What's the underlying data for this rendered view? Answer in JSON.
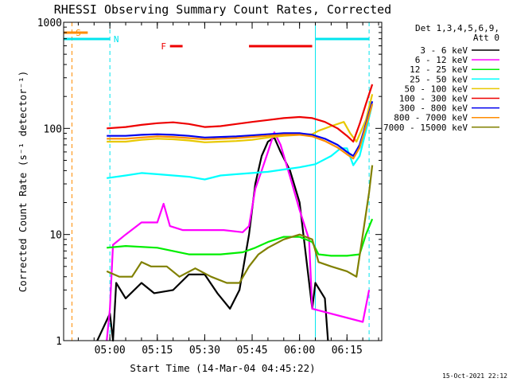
{
  "chart_data": {
    "type": "line",
    "title": "RHESSI Observing Summary Count Rates, Corrected",
    "xlabel": "Start Time (14-Mar-04 04:45:22)",
    "ylabel": "Corrected Count Rate (s⁻¹ detector⁻¹)",
    "y_scale": "log",
    "ylim": [
      1,
      1000
    ],
    "y_ticks": [
      {
        "value": 1,
        "label": "1"
      },
      {
        "value": 10,
        "label": "10"
      },
      {
        "value": 100,
        "label": "100"
      },
      {
        "value": 1000,
        "label": "1000"
      }
    ],
    "xlim": [
      "04:45:22",
      "06:26:00"
    ],
    "x_ticks": [
      "05:00",
      "05:15",
      "05:30",
      "05:45",
      "06:00",
      "06:15"
    ],
    "legend_position": "right",
    "legend_header": [
      "Det 1,3,4,5,6,9,",
      "Att 0"
    ],
    "footer_timestamp": "15-Oct-2021 22:12",
    "flags": [
      {
        "label": "S",
        "color": "#ff8c00",
        "time": "04:48",
        "bar": [
          "04:45:22",
          "04:53"
        ],
        "line_style": "dashed"
      },
      {
        "label": "N",
        "color": "#00e5ee",
        "time": "05:00",
        "bar": [
          "04:45:22",
          "05:00"
        ],
        "line_style": "dashed"
      },
      {
        "label": "F",
        "color": "#ee0000",
        "bars": [
          [
            "05:19",
            "05:23"
          ],
          [
            "05:44",
            "06:04"
          ]
        ]
      },
      {
        "label": "",
        "color": "#00e5ee",
        "times": [
          "06:05",
          "06:22"
        ],
        "bar": [
          "06:05",
          "06:22"
        ]
      }
    ],
    "series": [
      {
        "name": "3 - 6 keV",
        "color": "#000000",
        "points": [
          [
            "04:56",
            1.0
          ],
          [
            "05:00",
            1.8
          ],
          [
            "05:01",
            1.0
          ],
          [
            "05:02",
            3.5
          ],
          [
            "05:05",
            2.5
          ],
          [
            "05:10",
            3.5
          ],
          [
            "05:14",
            2.8
          ],
          [
            "05:20",
            3.0
          ],
          [
            "05:25",
            4.2
          ],
          [
            "05:30",
            4.2
          ],
          [
            "05:34",
            2.8
          ],
          [
            "05:38",
            2.0
          ],
          [
            "05:41",
            3.0
          ],
          [
            "05:44",
            10.0
          ],
          [
            "05:46",
            30.0
          ],
          [
            "05:48",
            55.0
          ],
          [
            "05:50",
            75.0
          ],
          [
            "05:52",
            82.0
          ],
          [
            "05:54",
            60.0
          ],
          [
            "05:57",
            40.0
          ],
          [
            "06:00",
            20.0
          ],
          [
            "06:04",
            2.0
          ],
          [
            "06:05",
            3.5
          ],
          [
            "06:08",
            2.5
          ],
          [
            "06:09",
            1.0
          ]
        ]
      },
      {
        "name": "6 - 12 keV",
        "color": "#ff00ff",
        "points": [
          [
            "04:59",
            1.0
          ],
          [
            "05:00",
            2.0
          ],
          [
            "05:01",
            8.0
          ],
          [
            "05:05",
            10.0
          ],
          [
            "05:10",
            13.0
          ],
          [
            "05:15",
            13.0
          ],
          [
            "05:17",
            19.5
          ],
          [
            "05:19",
            12.0
          ],
          [
            "05:23",
            11.0
          ],
          [
            "05:30",
            11.0
          ],
          [
            "05:36",
            11.0
          ],
          [
            "05:42",
            10.5
          ],
          [
            "05:44",
            12.0
          ],
          [
            "05:46",
            27.0
          ],
          [
            "05:48",
            40.0
          ],
          [
            "05:50",
            60.0
          ],
          [
            "05:52",
            92.0
          ],
          [
            "05:54",
            70.0
          ],
          [
            "05:57",
            35.0
          ],
          [
            "06:00",
            17.0
          ],
          [
            "06:03",
            9.0
          ],
          [
            "06:04",
            2.0
          ],
          [
            "06:20",
            1.5
          ],
          [
            "06:22",
            3.0
          ]
        ]
      },
      {
        "name": "12 - 25 keV",
        "color": "#00ee00",
        "points": [
          [
            "04:59",
            7.5
          ],
          [
            "05:05",
            7.8
          ],
          [
            "05:15",
            7.5
          ],
          [
            "05:25",
            6.5
          ],
          [
            "05:35",
            6.5
          ],
          [
            "05:42",
            6.8
          ],
          [
            "05:46",
            7.5
          ],
          [
            "05:50",
            8.5
          ],
          [
            "05:55",
            9.5
          ],
          [
            "06:00",
            9.5
          ],
          [
            "06:04",
            8.5
          ],
          [
            "06:06",
            6.5
          ],
          [
            "06:10",
            6.3
          ],
          [
            "06:15",
            6.3
          ],
          [
            "06:19",
            6.5
          ],
          [
            "06:21",
            10.0
          ],
          [
            "06:23",
            14.0
          ]
        ]
      },
      {
        "name": "25 - 50 keV",
        "color": "#00ffff",
        "points": [
          [
            "04:59",
            34.0
          ],
          [
            "05:05",
            36.0
          ],
          [
            "05:10",
            38.0
          ],
          [
            "05:15",
            37.0
          ],
          [
            "05:20",
            36.0
          ],
          [
            "05:25",
            35.0
          ],
          [
            "05:30",
            33.0
          ],
          [
            "05:35",
            36.0
          ],
          [
            "05:40",
            37.0
          ],
          [
            "05:45",
            38.0
          ],
          [
            "05:50",
            39.0
          ],
          [
            "05:55",
            41.0
          ],
          [
            "06:00",
            43.0
          ],
          [
            "06:05",
            46.0
          ],
          [
            "06:10",
            55.0
          ],
          [
            "06:13",
            65.0
          ],
          [
            "06:15",
            65.0
          ],
          [
            "06:17",
            45.0
          ],
          [
            "06:19",
            55.0
          ],
          [
            "06:21",
            95.0
          ],
          [
            "06:23",
            170.0
          ]
        ]
      },
      {
        "name": "50 - 100 keV",
        "color": "#e8c800",
        "points": [
          [
            "04:59",
            75.0
          ],
          [
            "05:05",
            75.0
          ],
          [
            "05:10",
            78.0
          ],
          [
            "05:15",
            80.0
          ],
          [
            "05:20",
            79.0
          ],
          [
            "05:25",
            77.0
          ],
          [
            "05:30",
            74.0
          ],
          [
            "05:35",
            75.0
          ],
          [
            "05:40",
            76.0
          ],
          [
            "05:45",
            78.0
          ],
          [
            "05:50",
            82.0
          ],
          [
            "05:55",
            85.0
          ],
          [
            "06:00",
            87.0
          ],
          [
            "06:04",
            88.0
          ],
          [
            "06:06",
            95.0
          ],
          [
            "06:10",
            105.0
          ],
          [
            "06:14",
            115.0
          ],
          [
            "06:16",
            90.0
          ],
          [
            "06:18",
            75.0
          ],
          [
            "06:21",
            120.0
          ],
          [
            "06:23",
            210.0
          ]
        ]
      },
      {
        "name": "100 - 300 keV",
        "color": "#ee0000",
        "points": [
          [
            "04:59",
            100.0
          ],
          [
            "05:05",
            103.0
          ],
          [
            "05:10",
            108.0
          ],
          [
            "05:15",
            112.0
          ],
          [
            "05:20",
            114.0
          ],
          [
            "05:25",
            110.0
          ],
          [
            "05:30",
            103.0
          ],
          [
            "05:35",
            105.0
          ],
          [
            "05:40",
            110.0
          ],
          [
            "05:45",
            115.0
          ],
          [
            "05:50",
            120.0
          ],
          [
            "05:55",
            125.0
          ],
          [
            "06:00",
            128.0
          ],
          [
            "06:04",
            125.0
          ],
          [
            "06:08",
            115.0
          ],
          [
            "06:12",
            100.0
          ],
          [
            "06:15",
            85.0
          ],
          [
            "06:17",
            75.0
          ],
          [
            "06:19",
            110.0
          ],
          [
            "06:21",
            170.0
          ],
          [
            "06:23",
            260.0
          ]
        ]
      },
      {
        "name": "300 - 800 keV",
        "color": "#0000ee",
        "points": [
          [
            "04:59",
            85.0
          ],
          [
            "05:05",
            85.0
          ],
          [
            "05:10",
            87.0
          ],
          [
            "05:15",
            88.0
          ],
          [
            "05:20",
            87.0
          ],
          [
            "05:25",
            85.0
          ],
          [
            "05:30",
            82.0
          ],
          [
            "05:35",
            83.0
          ],
          [
            "05:40",
            84.0
          ],
          [
            "05:45",
            86.0
          ],
          [
            "05:50",
            88.0
          ],
          [
            "05:55",
            90.0
          ],
          [
            "06:00",
            90.0
          ],
          [
            "06:04",
            87.0
          ],
          [
            "06:08",
            80.0
          ],
          [
            "06:12",
            70.0
          ],
          [
            "06:15",
            60.0
          ],
          [
            "06:17",
            55.0
          ],
          [
            "06:19",
            70.0
          ],
          [
            "06:21",
            110.0
          ],
          [
            "06:23",
            180.0
          ]
        ]
      },
      {
        "name": "800 - 7000 keV",
        "color": "#ff8c00",
        "points": [
          [
            "04:59",
            80.0
          ],
          [
            "05:05",
            80.0
          ],
          [
            "05:10",
            82.0
          ],
          [
            "05:15",
            84.0
          ],
          [
            "05:20",
            83.0
          ],
          [
            "05:25",
            81.0
          ],
          [
            "05:30",
            79.0
          ],
          [
            "05:35",
            80.0
          ],
          [
            "05:40",
            81.0
          ],
          [
            "05:45",
            83.0
          ],
          [
            "05:50",
            85.0
          ],
          [
            "05:55",
            87.0
          ],
          [
            "06:00",
            87.0
          ],
          [
            "06:04",
            84.0
          ],
          [
            "06:08",
            76.0
          ],
          [
            "06:12",
            66.0
          ],
          [
            "06:15",
            57.0
          ],
          [
            "06:17",
            52.0
          ],
          [
            "06:19",
            66.0
          ],
          [
            "06:21",
            105.0
          ],
          [
            "06:23",
            170.0
          ]
        ]
      },
      {
        "name": "7000 - 15000 keV",
        "color": "#808000",
        "points": [
          [
            "04:59",
            4.5
          ],
          [
            "05:03",
            4.0
          ],
          [
            "05:07",
            4.0
          ],
          [
            "05:10",
            5.5
          ],
          [
            "05:13",
            5.0
          ],
          [
            "05:18",
            5.0
          ],
          [
            "05:22",
            4.0
          ],
          [
            "05:27",
            4.8
          ],
          [
            "05:32",
            4.0
          ],
          [
            "05:37",
            3.5
          ],
          [
            "05:41",
            3.5
          ],
          [
            "05:44",
            5.0
          ],
          [
            "05:47",
            6.5
          ],
          [
            "05:50",
            7.5
          ],
          [
            "05:55",
            9.0
          ],
          [
            "06:00",
            10.0
          ],
          [
            "06:04",
            9.0
          ],
          [
            "06:06",
            5.5
          ],
          [
            "06:10",
            5.0
          ],
          [
            "06:15",
            4.5
          ],
          [
            "06:18",
            4.0
          ],
          [
            "06:20",
            10.0
          ],
          [
            "06:22",
            25.0
          ],
          [
            "06:23",
            45.0
          ]
        ]
      }
    ]
  }
}
